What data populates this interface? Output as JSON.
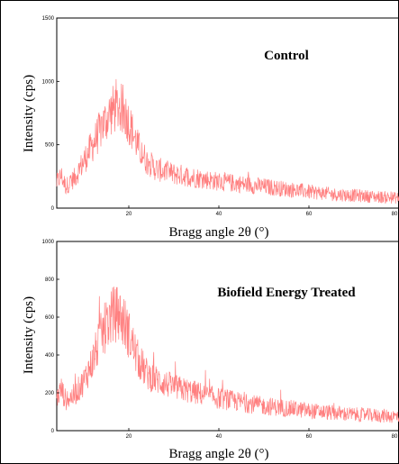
{
  "chart_data": [
    {
      "type": "line",
      "title": "Control",
      "xlabel": "Bragg angle 2θ (°)",
      "ylabel": "Intensity (cps)",
      "xlim": [
        4,
        80
      ],
      "ylim": [
        0,
        1500
      ],
      "xticks": [
        "20",
        "40",
        "60",
        "80"
      ],
      "yticks": [
        "0",
        "500",
        "1000",
        "1500"
      ],
      "series_color": "#ff7f7f",
      "grid": false,
      "series": [
        {
          "x": [
            4,
            5,
            6,
            8,
            10,
            12,
            14,
            16,
            17,
            18,
            19,
            20,
            22,
            24,
            26,
            28,
            30,
            35,
            40,
            45,
            50,
            55,
            60,
            65,
            70,
            75,
            80
          ],
          "y": [
            200,
            260,
            170,
            240,
            370,
            500,
            640,
            760,
            790,
            800,
            760,
            680,
            490,
            370,
            310,
            290,
            270,
            240,
            210,
            190,
            170,
            150,
            130,
            110,
            100,
            90,
            80
          ]
        }
      ]
    },
    {
      "type": "line",
      "title": "Biofield Energy Treated",
      "xlabel": "Bragg angle 2θ (°)",
      "ylabel": "Intensity (cps)",
      "xlim": [
        4,
        80
      ],
      "ylim": [
        0,
        1000
      ],
      "xticks": [
        "20",
        "40",
        "60",
        "80"
      ],
      "yticks": [
        "0",
        "200",
        "400",
        "600",
        "800",
        "1000"
      ],
      "series_color": "#ff7f7f",
      "grid": false,
      "series": [
        {
          "x": [
            4,
            5,
            6,
            8,
            10,
            12,
            14,
            16,
            17,
            18,
            19,
            20,
            22,
            24,
            26,
            28,
            30,
            35,
            40,
            45,
            50,
            55,
            60,
            65,
            70,
            75,
            80
          ],
          "y": [
            170,
            220,
            160,
            190,
            260,
            370,
            510,
            600,
            620,
            610,
            570,
            510,
            380,
            300,
            270,
            250,
            230,
            200,
            170,
            150,
            130,
            120,
            105,
            95,
            85,
            80,
            75
          ]
        }
      ]
    }
  ]
}
